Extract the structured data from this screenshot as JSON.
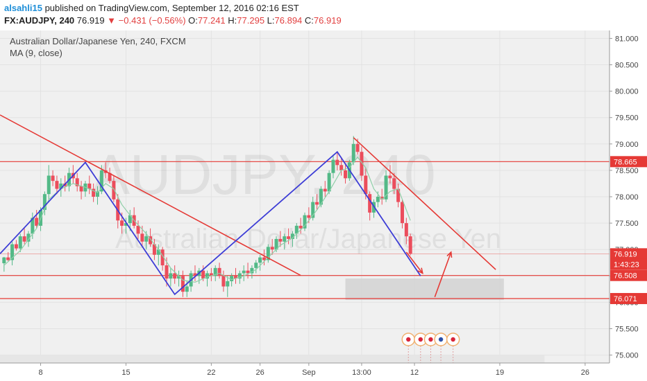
{
  "header": {
    "user": "alsahli15",
    "published": "published on TradingView.com, September 12, 2016 02:16 EST"
  },
  "quote": {
    "symbol": "FX:AUDJPY, 240",
    "last": "76.919",
    "arrow": "▼",
    "change": "−0.431 (−0.56%)",
    "o_label": "O:",
    "o": "77.241",
    "h_label": "H:",
    "h": "77.295",
    "l_label": "L:",
    "l": "76.894",
    "c_label": "C:",
    "c": "76.919"
  },
  "legend": {
    "title": "Australian Dollar/Japanese Yen, 240, FXCM",
    "ma": "MA (9, close)"
  },
  "watermark": {
    "symbol": "AUDJPY, 240",
    "name": "Australian Dollar/Japanese Yen"
  },
  "colors": {
    "up": "#53b987",
    "down": "#eb4d5c",
    "ma": "#8fcfa8",
    "red_line": "#e53935",
    "blue_line": "#3d3dd6",
    "bg": "#f0f0f0",
    "grid": "#e2e2e2"
  },
  "chart_data": {
    "type": "candlestick",
    "title": "Australian Dollar/Japanese Yen, 240, FXCM",
    "ylim": [
      74.85,
      81.15
    ],
    "y_ticks": [
      "81.000",
      "80.500",
      "80.000",
      "79.500",
      "79.000",
      "78.500",
      "78.000",
      "77.500",
      "77.000",
      "76.500",
      "76.000",
      "75.500",
      "75.000"
    ],
    "y_tick_values": [
      81.0,
      80.5,
      80.0,
      79.5,
      79.0,
      78.5,
      78.0,
      77.5,
      77.0,
      76.5,
      76.0,
      75.5,
      75.0
    ],
    "x_ticks": [
      {
        "label": "8",
        "t": 10
      },
      {
        "label": "15",
        "t": 52
      },
      {
        "label": "22",
        "t": 94
      },
      {
        "label": "26",
        "t": 118
      },
      {
        "label": "Sep",
        "t": 142
      },
      {
        "label": "13:00",
        "t": 168
      },
      {
        "label": "12",
        "t": 194
      },
      {
        "label": "19",
        "t": 236
      },
      {
        "label": "26",
        "t": 278
      }
    ],
    "xlim": [
      -10,
      290
    ],
    "price_labels": [
      {
        "label": "78.665",
        "value": 78.665,
        "color": "#e53935"
      },
      {
        "label": "76.919",
        "value": 76.919,
        "color": "#e53935"
      },
      {
        "label": "1:43:23",
        "value": 76.72,
        "color": "#e53935"
      },
      {
        "label": "76.508",
        "value": 76.508,
        "color": "#e53935"
      },
      {
        "label": "76.071",
        "value": 76.071,
        "color": "#e53935"
      }
    ],
    "horizontal_lines": [
      78.665,
      76.508,
      76.071
    ],
    "last_price_line": 76.919,
    "trendlines_red": [
      {
        "from": [
          -10,
          79.55
        ],
        "to": [
          138,
          76.51
        ]
      },
      {
        "from": [
          164,
          79.12
        ],
        "to": [
          234,
          76.62
        ]
      }
    ],
    "zigzag_blue": [
      [
        -10,
        76.92
      ],
      [
        32,
        78.65
      ],
      [
        76,
        76.15
      ],
      [
        156,
        78.85
      ],
      [
        197,
        76.5
      ]
    ],
    "projection_red": [
      {
        "from": [
          190,
          76.95
        ],
        "to": [
          198,
          76.55
        ]
      },
      {
        "from": [
          204,
          76.1
        ],
        "to": [
          212,
          76.95
        ]
      }
    ],
    "target_zone": {
      "t0": 160,
      "t1": 238,
      "p0": 76.045,
      "p1": 76.45
    },
    "lower_band": {
      "t0": -10,
      "t1": 258,
      "p0": 74.85,
      "p1": 75.0
    },
    "events_t": [
      191,
      197,
      202,
      207,
      213
    ],
    "ohlc": [
      [
        -8,
        76.74,
        76.86,
        76.58,
        76.85
      ],
      [
        -6,
        76.85,
        76.95,
        76.78,
        76.8
      ],
      [
        -4,
        76.8,
        77.15,
        76.7,
        77.1
      ],
      [
        -2,
        77.1,
        77.18,
        76.98,
        77.02
      ],
      [
        0,
        77.02,
        77.3,
        76.95,
        77.25
      ],
      [
        2,
        77.25,
        77.4,
        77.1,
        77.15
      ],
      [
        4,
        77.15,
        77.35,
        77.05,
        77.3
      ],
      [
        6,
        77.3,
        77.7,
        77.2,
        77.6
      ],
      [
        8,
        77.6,
        77.75,
        77.4,
        77.45
      ],
      [
        10,
        77.45,
        77.8,
        77.35,
        77.75
      ],
      [
        12,
        77.75,
        78.1,
        77.65,
        78.05
      ],
      [
        14,
        78.05,
        78.6,
        77.95,
        78.4
      ],
      [
        16,
        78.4,
        78.5,
        78.2,
        78.3
      ],
      [
        18,
        78.3,
        78.4,
        78.05,
        78.15
      ],
      [
        20,
        78.15,
        78.35,
        78.0,
        78.25
      ],
      [
        22,
        78.25,
        78.4,
        78.1,
        78.2
      ],
      [
        24,
        78.2,
        78.55,
        78.1,
        78.45
      ],
      [
        26,
        78.45,
        78.6,
        78.25,
        78.35
      ],
      [
        28,
        78.35,
        78.45,
        78.1,
        78.2
      ],
      [
        30,
        78.2,
        78.3,
        77.95,
        78.1
      ],
      [
        32,
        78.1,
        78.3,
        78.0,
        78.25
      ],
      [
        34,
        78.25,
        78.4,
        78.05,
        78.15
      ],
      [
        36,
        78.15,
        78.25,
        77.9,
        78.0
      ],
      [
        38,
        78.0,
        78.2,
        77.85,
        78.1
      ],
      [
        40,
        78.1,
        78.6,
        78.05,
        78.5
      ],
      [
        42,
        78.5,
        78.65,
        78.35,
        78.45
      ],
      [
        44,
        78.45,
        78.55,
        78.25,
        78.3
      ],
      [
        46,
        78.3,
        78.4,
        77.9,
        77.95
      ],
      [
        48,
        77.95,
        78.05,
        77.4,
        77.55
      ],
      [
        50,
        77.55,
        77.7,
        77.3,
        77.45
      ],
      [
        52,
        77.45,
        77.6,
        77.3,
        77.5
      ],
      [
        54,
        77.5,
        77.75,
        77.35,
        77.65
      ],
      [
        56,
        77.65,
        77.8,
        77.4,
        77.45
      ],
      [
        58,
        77.45,
        77.55,
        77.2,
        77.3
      ],
      [
        60,
        77.3,
        77.45,
        77.05,
        77.15
      ],
      [
        62,
        77.15,
        77.35,
        77.0,
        77.25
      ],
      [
        64,
        77.25,
        77.4,
        77.05,
        77.1
      ],
      [
        66,
        77.1,
        77.2,
        76.8,
        76.9
      ],
      [
        68,
        76.9,
        77.1,
        76.7,
        77.0
      ],
      [
        70,
        77.0,
        77.05,
        76.6,
        76.7
      ],
      [
        72,
        76.7,
        76.85,
        76.3,
        76.45
      ],
      [
        74,
        76.45,
        76.65,
        76.3,
        76.55
      ],
      [
        76,
        76.55,
        76.7,
        76.35,
        76.45
      ],
      [
        78,
        76.45,
        76.6,
        76.3,
        76.5
      ],
      [
        80,
        76.5,
        76.6,
        76.1,
        76.2
      ],
      [
        82,
        76.2,
        76.4,
        76.1,
        76.3
      ],
      [
        84,
        76.3,
        76.6,
        76.2,
        76.55
      ],
      [
        86,
        76.55,
        76.7,
        76.4,
        76.5
      ],
      [
        88,
        76.5,
        76.65,
        76.35,
        76.6
      ],
      [
        90,
        76.6,
        76.7,
        76.4,
        76.45
      ],
      [
        92,
        76.45,
        76.6,
        76.3,
        76.55
      ],
      [
        94,
        76.55,
        76.65,
        76.4,
        76.5
      ],
      [
        96,
        76.5,
        76.7,
        76.4,
        76.65
      ],
      [
        98,
        76.65,
        76.75,
        76.45,
        76.5
      ],
      [
        100,
        76.5,
        76.6,
        76.2,
        76.3
      ],
      [
        102,
        76.3,
        76.5,
        76.1,
        76.4
      ],
      [
        104,
        76.4,
        76.55,
        76.3,
        76.5
      ],
      [
        106,
        76.5,
        76.65,
        76.35,
        76.45
      ],
      [
        108,
        76.45,
        76.6,
        76.35,
        76.55
      ],
      [
        110,
        76.55,
        76.7,
        76.4,
        76.6
      ],
      [
        112,
        76.6,
        76.75,
        76.45,
        76.55
      ],
      [
        114,
        76.55,
        76.7,
        76.45,
        76.65
      ],
      [
        116,
        76.65,
        76.8,
        76.55,
        76.75
      ],
      [
        118,
        76.75,
        76.9,
        76.6,
        76.85
      ],
      [
        120,
        76.85,
        77.0,
        76.7,
        76.8
      ],
      [
        122,
        76.8,
        77.1,
        76.75,
        77.05
      ],
      [
        124,
        77.05,
        77.2,
        76.9,
        77.0
      ],
      [
        126,
        77.0,
        77.25,
        76.95,
        77.2
      ],
      [
        128,
        77.2,
        77.35,
        77.05,
        77.15
      ],
      [
        130,
        77.15,
        77.3,
        77.0,
        77.25
      ],
      [
        132,
        77.25,
        77.4,
        77.1,
        77.2
      ],
      [
        134,
        77.2,
        77.35,
        77.05,
        77.3
      ],
      [
        136,
        77.3,
        77.5,
        77.2,
        77.45
      ],
      [
        138,
        77.45,
        77.6,
        77.3,
        77.4
      ],
      [
        140,
        77.4,
        77.7,
        77.35,
        77.65
      ],
      [
        142,
        77.65,
        77.8,
        77.5,
        77.6
      ],
      [
        144,
        77.6,
        78.0,
        77.55,
        77.9
      ],
      [
        146,
        77.9,
        78.05,
        77.75,
        77.85
      ],
      [
        148,
        77.85,
        78.2,
        77.8,
        78.15
      ],
      [
        150,
        78.15,
        78.3,
        78.0,
        78.1
      ],
      [
        152,
        78.1,
        78.5,
        78.05,
        78.45
      ],
      [
        154,
        78.45,
        78.8,
        78.35,
        78.7
      ],
      [
        156,
        78.7,
        78.85,
        78.5,
        78.6
      ],
      [
        158,
        78.6,
        78.75,
        78.4,
        78.5
      ],
      [
        160,
        78.5,
        78.6,
        78.25,
        78.35
      ],
      [
        162,
        78.35,
        78.7,
        78.3,
        78.65
      ],
      [
        164,
        78.65,
        79.15,
        78.6,
        79.0
      ],
      [
        166,
        79.0,
        79.1,
        78.8,
        78.85
      ],
      [
        168,
        78.85,
        78.95,
        78.3,
        78.4
      ],
      [
        170,
        78.4,
        78.55,
        77.95,
        78.05
      ],
      [
        172,
        78.05,
        78.1,
        77.55,
        77.7
      ],
      [
        174,
        77.7,
        77.95,
        77.6,
        77.9
      ],
      [
        176,
        77.9,
        78.1,
        77.8,
        78.0
      ],
      [
        178,
        78.0,
        78.15,
        77.85,
        77.95
      ],
      [
        180,
        77.95,
        78.5,
        77.9,
        78.4
      ],
      [
        182,
        78.4,
        78.6,
        78.25,
        78.35
      ],
      [
        184,
        78.35,
        78.45,
        78.05,
        78.15
      ],
      [
        186,
        78.15,
        78.25,
        77.8,
        77.9
      ],
      [
        188,
        77.9,
        77.95,
        77.4,
        77.5
      ],
      [
        190,
        77.5,
        77.6,
        77.1,
        77.25
      ],
      [
        192,
        77.25,
        77.3,
        76.89,
        76.919
      ]
    ],
    "ma": [
      [
        -8,
        76.7
      ],
      [
        0,
        76.98
      ],
      [
        8,
        77.4
      ],
      [
        14,
        77.95
      ],
      [
        20,
        78.15
      ],
      [
        26,
        78.25
      ],
      [
        32,
        78.18
      ],
      [
        38,
        78.08
      ],
      [
        42,
        78.25
      ],
      [
        46,
        78.15
      ],
      [
        50,
        77.85
      ],
      [
        56,
        77.55
      ],
      [
        62,
        77.3
      ],
      [
        68,
        77.0
      ],
      [
        74,
        76.65
      ],
      [
        80,
        76.42
      ],
      [
        86,
        76.38
      ],
      [
        92,
        76.48
      ],
      [
        98,
        76.55
      ],
      [
        104,
        76.43
      ],
      [
        110,
        76.5
      ],
      [
        116,
        76.62
      ],
      [
        122,
        76.85
      ],
      [
        128,
        77.08
      ],
      [
        134,
        77.22
      ],
      [
        140,
        77.45
      ],
      [
        146,
        77.75
      ],
      [
        152,
        78.1
      ],
      [
        158,
        78.5
      ],
      [
        162,
        78.55
      ],
      [
        166,
        78.75
      ],
      [
        170,
        78.55
      ],
      [
        174,
        78.15
      ],
      [
        178,
        77.95
      ],
      [
        182,
        78.1
      ],
      [
        186,
        78.15
      ],
      [
        190,
        77.75
      ],
      [
        192,
        77.55
      ]
    ]
  }
}
